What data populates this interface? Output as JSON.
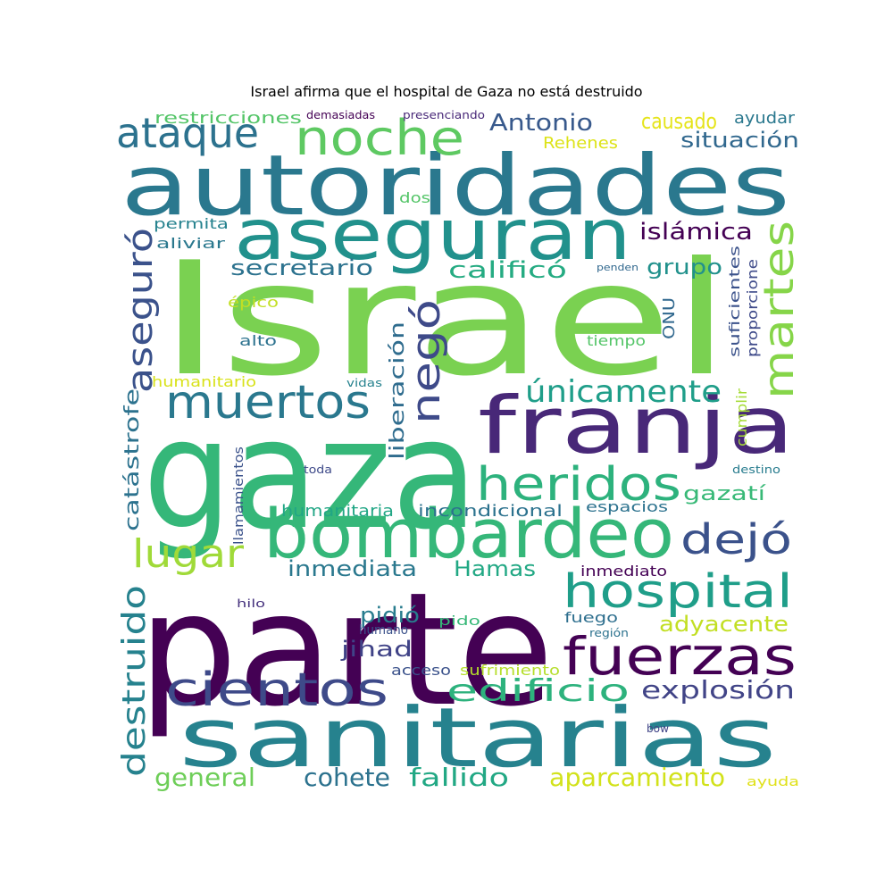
{
  "title": "Israel afirma que el hospital de Gaza no está destruido",
  "chart_data": {
    "type": "wordcloud",
    "words": [
      {
        "text": "Israel",
        "color": "#7ad151"
      },
      {
        "text": "gaza",
        "color": "#35b779"
      },
      {
        "text": "parte",
        "color": "#440154"
      },
      {
        "text": "autoridades",
        "color": "#2a788e"
      },
      {
        "text": "sanitarias",
        "color": "#26828e"
      },
      {
        "text": "aseguran",
        "color": "#21918c"
      },
      {
        "text": "franja",
        "color": "#482878"
      },
      {
        "text": "bombardeo",
        "color": "#35b779"
      },
      {
        "text": "hospital",
        "color": "#1f9e89"
      },
      {
        "text": "fuerzas",
        "color": "#440154"
      },
      {
        "text": "heridos",
        "color": "#2db27d"
      },
      {
        "text": "cientos",
        "color": "#3e4a89"
      },
      {
        "text": "muertos",
        "color": "#2a788e"
      },
      {
        "text": "noche",
        "color": "#5ec962"
      },
      {
        "text": "martes",
        "color": "#86d549"
      },
      {
        "text": "ataque",
        "color": "#2c728e"
      },
      {
        "text": "negó",
        "color": "#3e4a89"
      },
      {
        "text": "aseguró",
        "color": "#3b528b"
      },
      {
        "text": "dejó",
        "color": "#3b528b"
      },
      {
        "text": "edificio",
        "color": "#2db27d"
      },
      {
        "text": "únicamente",
        "color": "#1f9e89"
      },
      {
        "text": "destruido",
        "color": "#26828e"
      },
      {
        "text": "lugar",
        "color": "#a0da39"
      },
      {
        "text": "explosión",
        "color": "#414487"
      },
      {
        "text": "aparcamiento",
        "color": "#d2e21b"
      },
      {
        "text": "fallido",
        "color": "#22a884"
      },
      {
        "text": "cohete",
        "color": "#2c728e"
      },
      {
        "text": "general",
        "color": "#6ece58"
      },
      {
        "text": "adyacente",
        "color": "#c2df23"
      },
      {
        "text": "Antonio",
        "color": "#38598c"
      },
      {
        "text": "causado",
        "color": "#e5e419"
      },
      {
        "text": "situación",
        "color": "#31688e"
      },
      {
        "text": "islámica",
        "color": "#440154"
      },
      {
        "text": "calificó",
        "color": "#25ab82"
      },
      {
        "text": "secretario",
        "color": "#2c728e"
      },
      {
        "text": "grupo",
        "color": "#21918c"
      },
      {
        "text": "Hamas",
        "color": "#22a884"
      },
      {
        "text": "inmediata",
        "color": "#2a788e"
      },
      {
        "text": "liberación",
        "color": "#2f6c8e"
      },
      {
        "text": "catástrofe",
        "color": "#2c728e"
      },
      {
        "text": "pidió",
        "color": "#287c8e"
      },
      {
        "text": "jihad",
        "color": "#404387"
      },
      {
        "text": "gazatí",
        "color": "#38b977"
      },
      {
        "text": "restricciones",
        "color": "#54c568"
      },
      {
        "text": "incondicional",
        "color": "#2c728e"
      },
      {
        "text": "humanitaria",
        "color": "#21a685"
      },
      {
        "text": "ayudar",
        "color": "#2a788e"
      },
      {
        "text": "Rehenes",
        "color": "#dde318"
      },
      {
        "text": "ONU",
        "color": "#31688e"
      },
      {
        "text": "suficientes",
        "color": "#3b528b"
      },
      {
        "text": "proporcione",
        "color": "#3e4a89"
      },
      {
        "text": "cumplir",
        "color": "#a5db36"
      },
      {
        "text": "espacios",
        "color": "#2c728e"
      },
      {
        "text": "inmediato",
        "color": "#440154"
      },
      {
        "text": "fuego",
        "color": "#2e6f8e"
      },
      {
        "text": "acceso",
        "color": "#3b528b"
      },
      {
        "text": "sufrimiento",
        "color": "#b5de2b"
      },
      {
        "text": "permita",
        "color": "#26828e"
      },
      {
        "text": "aliviar",
        "color": "#2a788e"
      },
      {
        "text": "alto",
        "color": "#2c728e"
      },
      {
        "text": "tiempo",
        "color": "#54c568"
      },
      {
        "text": "épico",
        "color": "#c2df23"
      },
      {
        "text": "dos",
        "color": "#54c568"
      },
      {
        "text": "humanitario",
        "color": "#d8e219"
      },
      {
        "text": "vidas",
        "color": "#26828e"
      },
      {
        "text": "llamamientos",
        "color": "#3b528b"
      },
      {
        "text": "toda",
        "color": "#3e4a89"
      },
      {
        "text": "demasiadas",
        "color": "#440154"
      },
      {
        "text": "presenciando",
        "color": "#482878"
      },
      {
        "text": "penden",
        "color": "#31688e"
      },
      {
        "text": "destino",
        "color": "#287c8e"
      },
      {
        "text": "humano",
        "color": "#3b528b"
      },
      {
        "text": "pido",
        "color": "#37b878"
      },
      {
        "text": "hilo",
        "color": "#46327e"
      },
      {
        "text": "región",
        "color": "#2c728e"
      },
      {
        "text": "bow",
        "color": "#414487"
      },
      {
        "text": "ayuda",
        "color": "#e0e11a"
      }
    ]
  }
}
